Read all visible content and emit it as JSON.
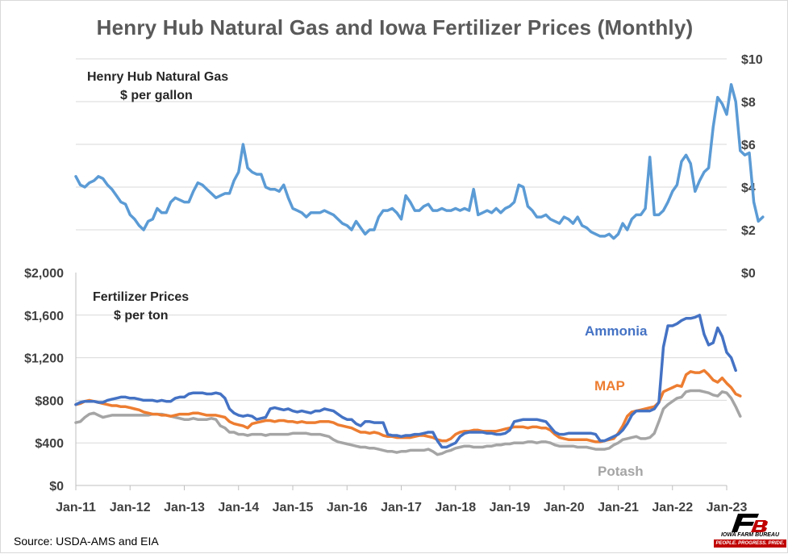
{
  "title": "Henry Hub Natural Gas and Iowa Fertilizer Prices (Monthly)",
  "source": "Source: USDA-AMS and EIA",
  "logo": {
    "name": "IOWA FARM BUREAU",
    "tagline": "PEOPLE. PROGRESS. PRIDE."
  },
  "colors": {
    "gas": "#5b9bd5",
    "ammonia": "#4472c4",
    "map": "#ed7d31",
    "potash": "#a5a5a5",
    "grid": "#d9d9d9",
    "axis_text": "#404040"
  },
  "chart_data": [
    {
      "type": "line",
      "panel": "top",
      "title": "Henry Hub Natural Gas",
      "subtitle": "$ per gallon",
      "y_axis_side": "right",
      "yticks": [
        "$0",
        "$2",
        "$4",
        "$6",
        "$8",
        "$10"
      ],
      "ylim": [
        0,
        10
      ],
      "x_start": "2011-01",
      "series": [
        {
          "name": "Henry Hub Natural Gas",
          "values": [
            4.5,
            4.1,
            4.0,
            4.2,
            4.3,
            4.5,
            4.4,
            4.1,
            3.9,
            3.6,
            3.3,
            3.2,
            2.7,
            2.5,
            2.2,
            2.0,
            2.4,
            2.5,
            3.0,
            2.8,
            2.8,
            3.3,
            3.5,
            3.4,
            3.3,
            3.3,
            3.8,
            4.2,
            4.1,
            3.9,
            3.7,
            3.5,
            3.6,
            3.7,
            3.7,
            4.3,
            4.7,
            6.0,
            4.9,
            4.7,
            4.6,
            4.6,
            4.0,
            3.9,
            3.9,
            3.8,
            4.1,
            3.5,
            3.0,
            2.9,
            2.8,
            2.6,
            2.8,
            2.8,
            2.8,
            2.9,
            2.8,
            2.7,
            2.5,
            2.3,
            2.2,
            2.0,
            2.4,
            2.1,
            1.8,
            2.0,
            2.0,
            2.6,
            2.9,
            2.9,
            3.0,
            2.8,
            2.5,
            3.6,
            3.3,
            2.9,
            2.9,
            3.1,
            3.2,
            2.9,
            2.9,
            3.0,
            2.9,
            2.9,
            3.0,
            2.9,
            3.0,
            2.9,
            3.9,
            2.7,
            2.8,
            2.9,
            2.8,
            3.0,
            2.8,
            3.0,
            3.1,
            3.3,
            4.1,
            4.0,
            3.1,
            2.9,
            2.6,
            2.6,
            2.7,
            2.5,
            2.4,
            2.3,
            2.6,
            2.5,
            2.3,
            2.6,
            2.2,
            2.1,
            1.9,
            1.8,
            1.7,
            1.7,
            1.8,
            1.6,
            1.8,
            2.3,
            2.0,
            2.5,
            2.7,
            2.7,
            3.0,
            5.4,
            2.7,
            2.7,
            2.9,
            3.3,
            3.8,
            4.1,
            5.2,
            5.5,
            5.1,
            3.8,
            4.3,
            4.7,
            4.9,
            6.8,
            8.2,
            7.9,
            7.4,
            8.8,
            8.0,
            5.7,
            5.5,
            5.6,
            3.3,
            2.4,
            2.6
          ]
        }
      ]
    },
    {
      "type": "line",
      "panel": "bottom",
      "title": "Fertilizer Prices",
      "subtitle": "$ per ton",
      "y_axis_side": "left",
      "yticks": [
        "$0",
        "$400",
        "$800",
        "$1,200",
        "$1,600",
        "$2,000"
      ],
      "ylim": [
        0,
        2000
      ],
      "x_start": "2011-01",
      "xticks": [
        "Jan-11",
        "Jan-12",
        "Jan-13",
        "Jan-14",
        "Jan-15",
        "Jan-16",
        "Jan-17",
        "Jan-18",
        "Jan-19",
        "Jan-20",
        "Jan-21",
        "Jan-22",
        "Jan-23"
      ],
      "series": [
        {
          "name": "Ammonia",
          "values": [
            760,
            780,
            790,
            790,
            790,
            780,
            780,
            800,
            810,
            820,
            830,
            830,
            820,
            820,
            810,
            800,
            800,
            800,
            790,
            800,
            790,
            790,
            820,
            830,
            830,
            860,
            870,
            870,
            870,
            860,
            860,
            870,
            860,
            820,
            720,
            680,
            660,
            650,
            660,
            650,
            620,
            630,
            640,
            720,
            730,
            720,
            710,
            720,
            700,
            690,
            700,
            690,
            680,
            700,
            700,
            720,
            710,
            700,
            670,
            640,
            620,
            620,
            580,
            560,
            600,
            600,
            590,
            590,
            590,
            480,
            470,
            470,
            460,
            470,
            470,
            480,
            480,
            490,
            500,
            500,
            420,
            360,
            360,
            380,
            400,
            460,
            490,
            500,
            500,
            500,
            500,
            490,
            490,
            480,
            480,
            490,
            520,
            600,
            610,
            620,
            620,
            620,
            620,
            610,
            600,
            550,
            500,
            480,
            480,
            490,
            490,
            490,
            490,
            490,
            490,
            480,
            420,
            420,
            440,
            460,
            480,
            520,
            580,
            660,
            700,
            700,
            700,
            700,
            720,
            780,
            1300,
            1500,
            1500,
            1520,
            1550,
            1570,
            1570,
            1580,
            1600,
            1420,
            1320,
            1340,
            1480,
            1400,
            1250,
            1200,
            1080
          ]
        },
        {
          "name": "MAP",
          "values": [
            760,
            770,
            790,
            800,
            790,
            780,
            770,
            760,
            750,
            750,
            740,
            740,
            730,
            720,
            710,
            690,
            680,
            670,
            670,
            660,
            660,
            650,
            660,
            670,
            670,
            670,
            680,
            680,
            670,
            660,
            660,
            660,
            650,
            640,
            600,
            580,
            570,
            560,
            540,
            580,
            590,
            600,
            610,
            610,
            600,
            610,
            610,
            600,
            600,
            590,
            600,
            590,
            590,
            590,
            600,
            600,
            600,
            590,
            570,
            560,
            550,
            540,
            520,
            500,
            500,
            490,
            500,
            490,
            470,
            460,
            460,
            450,
            450,
            450,
            450,
            460,
            470,
            470,
            460,
            450,
            430,
            420,
            420,
            440,
            480,
            500,
            510,
            510,
            520,
            520,
            510,
            510,
            510,
            510,
            520,
            530,
            540,
            550,
            550,
            550,
            540,
            550,
            550,
            540,
            540,
            520,
            480,
            450,
            440,
            430,
            430,
            430,
            430,
            430,
            420,
            410,
            410,
            420,
            430,
            440,
            490,
            560,
            650,
            690,
            700,
            710,
            720,
            730,
            740,
            780,
            880,
            900,
            920,
            940,
            930,
            1040,
            1070,
            1060,
            1060,
            1080,
            1040,
            990,
            970,
            1010,
            960,
            920,
            860,
            840
          ]
        },
        {
          "name": "Potash",
          "values": [
            590,
            600,
            640,
            670,
            680,
            660,
            640,
            650,
            660,
            660,
            660,
            660,
            660,
            660,
            660,
            660,
            660,
            670,
            670,
            670,
            660,
            650,
            640,
            630,
            620,
            620,
            630,
            620,
            620,
            620,
            630,
            620,
            560,
            540,
            500,
            500,
            480,
            480,
            470,
            480,
            480,
            480,
            470,
            480,
            480,
            480,
            480,
            480,
            490,
            490,
            490,
            490,
            480,
            480,
            480,
            470,
            460,
            430,
            410,
            400,
            390,
            380,
            370,
            360,
            360,
            350,
            350,
            340,
            330,
            320,
            320,
            310,
            320,
            320,
            330,
            330,
            330,
            330,
            340,
            320,
            290,
            300,
            320,
            330,
            350,
            360,
            370,
            370,
            360,
            360,
            360,
            370,
            370,
            380,
            380,
            390,
            390,
            400,
            400,
            400,
            410,
            410,
            400,
            410,
            410,
            400,
            380,
            370,
            370,
            370,
            370,
            360,
            360,
            360,
            350,
            340,
            340,
            340,
            350,
            380,
            400,
            430,
            440,
            450,
            460,
            440,
            440,
            450,
            490,
            600,
            720,
            760,
            790,
            820,
            830,
            880,
            890,
            890,
            890,
            880,
            870,
            850,
            840,
            880,
            870,
            820,
            740,
            650
          ]
        }
      ]
    }
  ]
}
